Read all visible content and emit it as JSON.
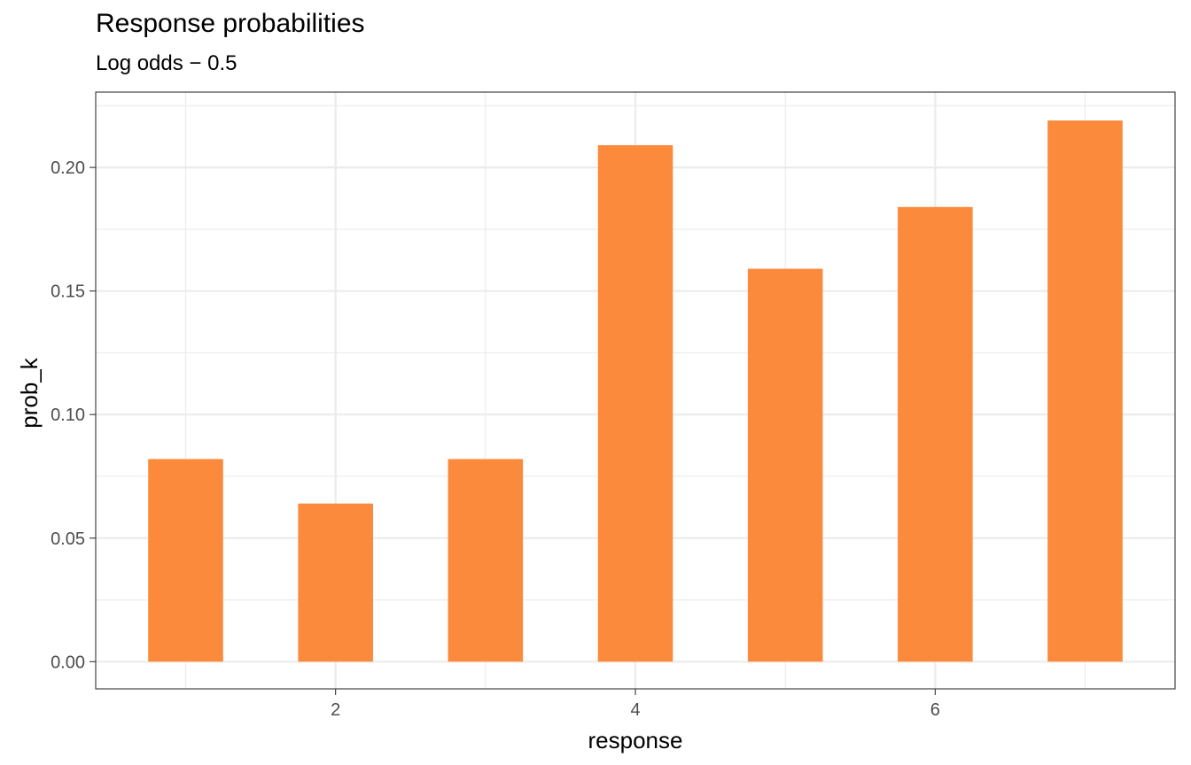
{
  "chart_data": {
    "type": "bar",
    "title": "Response probabilities",
    "subtitle": "Log odds − 0.5",
    "xlabel": "response",
    "ylabel": "prob_k",
    "x": [
      1,
      2,
      3,
      4,
      5,
      6,
      7
    ],
    "values": [
      0.082,
      0.064,
      0.082,
      0.209,
      0.159,
      0.184,
      0.219
    ],
    "xlim": [
      0.4,
      7.6
    ],
    "ylim": [
      -0.011,
      0.2305
    ],
    "x_ticks": [
      2,
      4,
      6
    ],
    "x_tick_labels": [
      "2",
      "4",
      "6"
    ],
    "y_ticks": [
      0,
      0.05,
      0.1,
      0.15,
      0.2
    ],
    "y_tick_labels": [
      "0.00",
      "0.05",
      "0.10",
      "0.15",
      "0.20"
    ],
    "bar_width": 0.5,
    "grid": true,
    "legend": "none",
    "bar_color": "#FB8A3C",
    "grid_color": "#EBEBEB",
    "panel_border_color": "#333333"
  }
}
